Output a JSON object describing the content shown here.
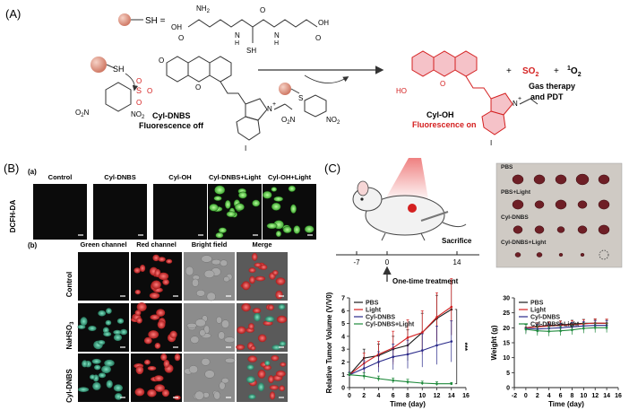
{
  "panels": {
    "A": "(A)",
    "B": "(B)",
    "C": "(C)"
  },
  "scheme": {
    "sh_label": "SH =",
    "nh2": "NH",
    "nh2_sub": "2",
    "oh": "OH",
    "o": "O",
    "n": "N",
    "h": "H",
    "sh": "SH",
    "sh_dots": "SH",
    "s_ring": "S",
    "no2": "NO",
    "no2_sub": "2",
    "o2n": "O",
    "o2n_mid": "2",
    "o2n_end": "N",
    "ho": "HO",
    "iodo": "I",
    "n_plus": "N",
    "plus_sign": "+",
    "probe_name": "Cyl-DNBS",
    "probe_state": "Fluorescence off",
    "product_name": "Cyl-OH",
    "product_state": "Fluorescence on",
    "so2": "SO",
    "so2_sub": "2",
    "o2_sup": "1",
    "o2": "O",
    "o2_sub": "2",
    "plus": "+",
    "therapy_line1": "Gas therapy",
    "therapy_line2": "and PDT"
  },
  "panel_b": {
    "sub_a": "(a)",
    "row_label_a": "DCFH-DA",
    "cols_a": [
      "Control",
      "Cyl-DNBS",
      "Cyl-OH",
      "Cyl-DNBS+Light",
      "Cyl-OH+Light"
    ],
    "sub_b": "(b)",
    "cols_b": [
      "Green channel",
      "Red channel",
      "Bright field",
      "Merge"
    ],
    "row_ctrl": "Control",
    "row_nahso3": "NaHSO",
    "row_nahso3_sub": "3",
    "row_cyl": "Cyl-DNBS"
  },
  "panel_c": {
    "timeline_ticks": [
      "-7",
      "0",
      "14"
    ],
    "sacrifice": "Sacrifice",
    "treatment": "One-time treatment",
    "photo_labels": [
      "PBS",
      "PBS+Light",
      "Cyl-DNBS",
      "Cyl-DNBS+Light"
    ],
    "significance": "***",
    "colors": {
      "pbs": "#1a1a1a",
      "light": "#d42020",
      "cyl": "#2a2a8a",
      "cyl_light": "#1f8a3c"
    }
  },
  "chart_data": [
    {
      "type": "line",
      "xlabel": "Time (day)",
      "ylabel": "Relative Tumor Volume (V/V0)",
      "xlim": [
        0,
        16
      ],
      "ylim": [
        0,
        7
      ],
      "xticks": [
        0,
        2,
        4,
        6,
        8,
        10,
        12,
        14,
        16
      ],
      "yticks": [
        0,
        1,
        2,
        3,
        4,
        5,
        6,
        7
      ],
      "legend": "top-left",
      "x": [
        0,
        2,
        4,
        6,
        8,
        10,
        12,
        14
      ],
      "series": [
        {
          "name": "PBS",
          "color": "#1a1a1a",
          "values": [
            1.0,
            2.3,
            2.5,
            3.0,
            3.3,
            4.3,
            5.4,
            6.1
          ],
          "err": [
            0.2,
            0.7,
            0.9,
            1.0,
            1.2,
            1.5,
            1.8,
            2.0
          ]
        },
        {
          "name": "Light",
          "color": "#d42020",
          "values": [
            1.0,
            1.9,
            2.6,
            3.1,
            3.9,
            4.3,
            5.5,
            6.3
          ],
          "err": [
            0.2,
            0.8,
            1.0,
            1.3,
            1.4,
            1.7,
            1.9,
            2.2
          ]
        },
        {
          "name": "Cyl-DNBS",
          "color": "#2a2a8a",
          "values": [
            1.0,
            1.5,
            2.0,
            2.4,
            2.6,
            2.9,
            3.3,
            3.6
          ],
          "err": [
            0.2,
            0.6,
            0.8,
            1.0,
            1.1,
            1.3,
            1.5,
            1.6
          ]
        },
        {
          "name": "Cyl-DNBS+Light",
          "color": "#1f8a3c",
          "values": [
            1.0,
            0.9,
            0.7,
            0.55,
            0.45,
            0.35,
            0.3,
            0.3
          ],
          "err": [
            0.15,
            0.25,
            0.2,
            0.2,
            0.2,
            0.15,
            0.15,
            0.1
          ]
        }
      ]
    },
    {
      "type": "line",
      "xlabel": "Time (day)",
      "ylabel": "Weight (g)",
      "xlim": [
        -2,
        16
      ],
      "ylim": [
        0,
        30
      ],
      "xticks": [
        -2,
        0,
        2,
        4,
        6,
        8,
        10,
        12,
        14,
        16
      ],
      "yticks": [
        0,
        5,
        10,
        15,
        20,
        25,
        30
      ],
      "legend": "top-left",
      "x": [
        0,
        2,
        4,
        6,
        8,
        10,
        12,
        14
      ],
      "series": [
        {
          "name": "PBS",
          "color": "#1a1a1a",
          "values": [
            20,
            20.5,
            20.8,
            21,
            21.2,
            21.5,
            21.5,
            21.5
          ],
          "err": [
            1.2,
            1.2,
            1.2,
            1.3,
            1.3,
            1.3,
            1.3,
            1.3
          ]
        },
        {
          "name": "Light",
          "color": "#d42020",
          "values": [
            20,
            20.3,
            20.6,
            20.8,
            21,
            21.3,
            21.6,
            21.5
          ],
          "err": [
            1.3,
            1.3,
            1.3,
            1.4,
            1.4,
            1.4,
            1.4,
            1.4
          ]
        },
        {
          "name": "Cyl-DNBS",
          "color": "#2a2a8a",
          "values": [
            19.8,
            19.6,
            19.8,
            20,
            20.3,
            20.6,
            20.8,
            20.8
          ],
          "err": [
            1.5,
            1.5,
            1.5,
            1.5,
            1.5,
            1.5,
            1.5,
            1.5
          ]
        },
        {
          "name": "Cyl-DNBS+Light",
          "color": "#1f8a3c",
          "values": [
            19.5,
            19,
            18.8,
            19,
            19.3,
            19.8,
            20,
            20
          ],
          "err": [
            1.6,
            1.6,
            1.6,
            1.6,
            1.6,
            1.6,
            1.6,
            1.6
          ]
        }
      ]
    }
  ]
}
